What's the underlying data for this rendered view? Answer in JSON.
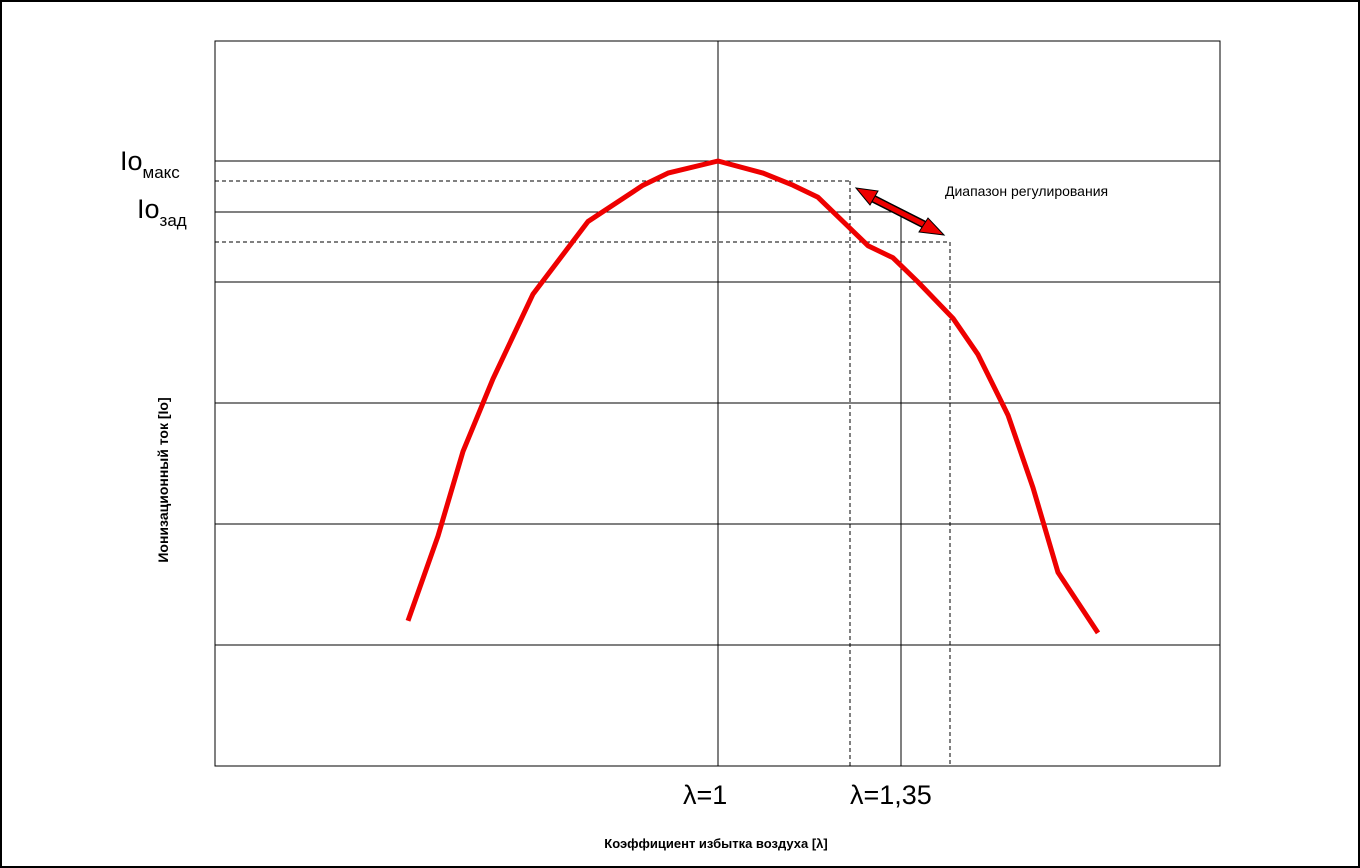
{
  "chart_data": {
    "type": "line",
    "xlabel": "Коэффициент избытка воздуха [λ]",
    "ylabel": "Ионизационный ток [Io]",
    "y_ticks": {
      "max": {
        "prefix": "Io",
        "sub": "макс"
      },
      "set": {
        "prefix": "Io",
        "sub": "зад"
      }
    },
    "x_ticks": [
      "λ=1",
      "λ=1,35"
    ],
    "annotation": "Диапазон регулирования",
    "curve_color": "#ee0000",
    "grid": true,
    "series": [
      {
        "values": [
          [
            -0.62,
            0.12
          ],
          [
            -0.56,
            0.19
          ],
          [
            -0.51,
            0.26
          ],
          [
            -0.45,
            0.32
          ],
          [
            -0.37,
            0.39
          ],
          [
            -0.26,
            0.45
          ],
          [
            -0.15,
            0.48
          ],
          [
            -0.1,
            0.49
          ],
          [
            0,
            0.5
          ],
          [
            0.09,
            0.49
          ],
          [
            0.15,
            0.48
          ],
          [
            0.2,
            0.47
          ],
          [
            0.25,
            0.45
          ],
          [
            0.3,
            0.43
          ],
          [
            0.35,
            0.42
          ],
          [
            0.4,
            0.4
          ],
          [
            0.47,
            0.37
          ],
          [
            0.52,
            0.34
          ],
          [
            0.58,
            0.29
          ],
          [
            0.63,
            0.23
          ],
          [
            0.68,
            0.16
          ],
          [
            0.76,
            0.11
          ]
        ]
      }
    ]
  }
}
